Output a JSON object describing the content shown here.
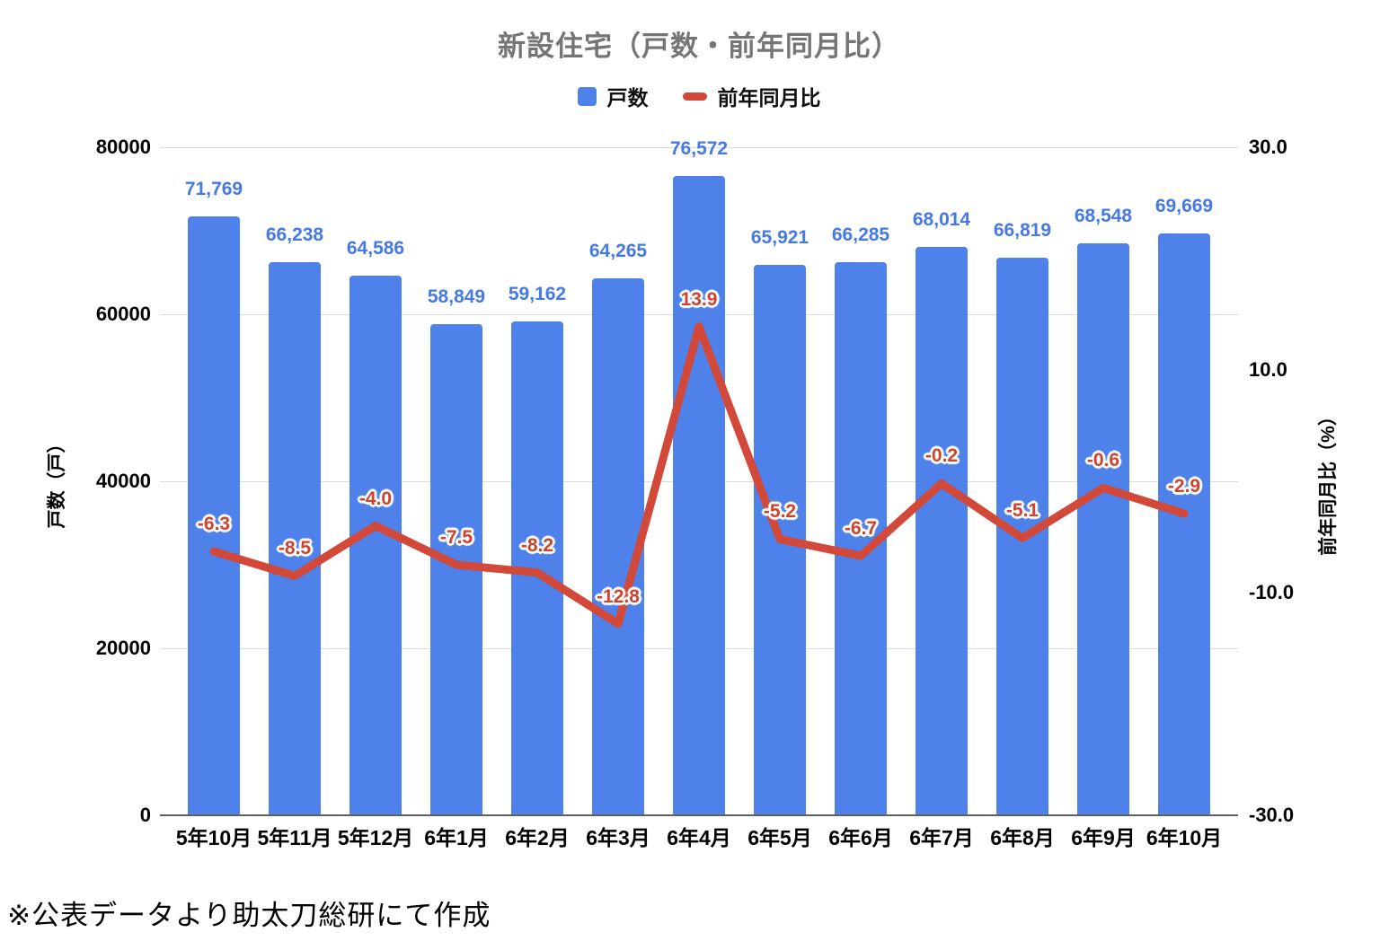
{
  "chart_data": {
    "type": "combo",
    "subtype": [
      "bar",
      "line"
    ],
    "title": "新設住宅（戸数・前年同月比）",
    "footer": "※公表データより助太刀総研にて作成",
    "categories": [
      "5年10月",
      "5年11月",
      "5年12月",
      "6年1月",
      "6年2月",
      "6年3月",
      "6年4月",
      "6年5月",
      "6年6月",
      "6年7月",
      "6年8月",
      "6年9月",
      "6年10月"
    ],
    "series": [
      {
        "name": "戸数",
        "type": "bar",
        "axis": "left",
        "color": "#4E81E9",
        "values": [
          71769,
          66238,
          64586,
          58849,
          59162,
          64265,
          76572,
          65921,
          66285,
          68014,
          66819,
          68548,
          69669
        ],
        "value_labels": [
          "71,769",
          "66,238",
          "64,586",
          "58,849",
          "59,162",
          "64,265",
          "76,572",
          "65,921",
          "66,285",
          "68,014",
          "66,819",
          "68,548",
          "69,669"
        ]
      },
      {
        "name": "前年同月比",
        "type": "line",
        "axis": "right",
        "color": "#D2493A",
        "values": [
          -6.3,
          -8.5,
          -4.0,
          -7.5,
          -8.2,
          -12.8,
          13.9,
          -5.2,
          -6.7,
          -0.2,
          -5.1,
          -0.6,
          -2.9
        ],
        "value_labels": [
          "-6.3",
          "-8.5",
          "-4.0",
          "-7.5",
          "-8.2",
          "-12.8",
          "13.9",
          "-5.2",
          "-6.7",
          "-0.2",
          "-5.1",
          "-0.6",
          "-2.9"
        ]
      }
    ],
    "left_axis": {
      "title": "戸数（戸）",
      "min": 0,
      "max": 80000,
      "ticks": [
        {
          "value": 80000,
          "label": "80000"
        },
        {
          "value": 60000,
          "label": "60000"
        },
        {
          "value": 40000,
          "label": "40000"
        },
        {
          "value": 20000,
          "label": "20000"
        },
        {
          "value": 0,
          "label": "0"
        }
      ]
    },
    "right_axis": {
      "title": "前年同月比（%）",
      "min": -30,
      "max": 30,
      "ticks": [
        {
          "value": 30,
          "label": "30.0"
        },
        {
          "value": 10,
          "label": "10.0"
        },
        {
          "value": -10,
          "label": "-10.0"
        },
        {
          "value": -30,
          "label": "-30.0"
        }
      ]
    },
    "legend_position": "top",
    "grid": "horizontal-only",
    "colors": {
      "bar": "#4E81E9",
      "bar_label": "#4579E6",
      "line": "#D2493A",
      "line_label": "#CE432E",
      "title": "#757575",
      "gridline": "#DCDCDC",
      "baseline": "#5f5f5f",
      "axis_text": "#000000",
      "background": "#ffffff"
    }
  }
}
